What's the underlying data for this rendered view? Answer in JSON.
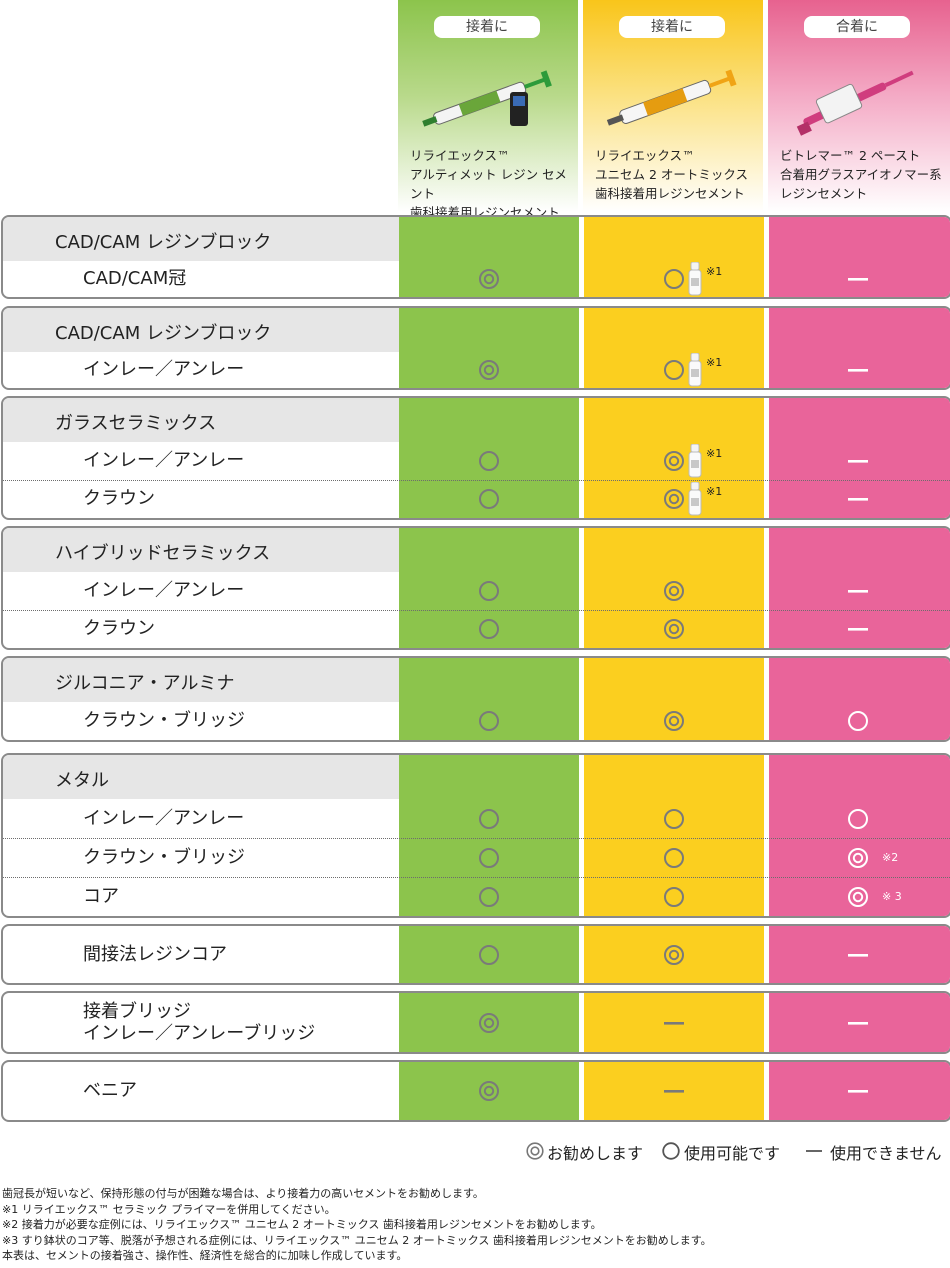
{
  "products": [
    {
      "tag": "接着に",
      "name": "リライエックス™\nアルティメット レジン セメント\n歯科接着用レジンセメント",
      "color": "#8cc44c"
    },
    {
      "tag": "接着に",
      "name": "リライエックス™\nユニセム 2 オートミックス\n歯科接着用レジンセメント",
      "color": "#fbcf1f"
    },
    {
      "tag": "合着に",
      "name": "ビトレマー™ 2 ペースト\n合着用グラスアイオノマー系\nレジンセメント",
      "color": "#e9649a"
    }
  ],
  "groups": [
    {
      "header": "CAD/CAM レジンブロック",
      "rows": [
        {
          "label": "CAD/CAM冠",
          "cells": [
            "double",
            "single+primer",
            "dash"
          ],
          "notes": [
            "",
            "※1",
            ""
          ]
        }
      ]
    },
    {
      "header": "CAD/CAM レジンブロック",
      "rows": [
        {
          "label": "インレー／アンレー",
          "cells": [
            "double",
            "single+primer",
            "dash"
          ],
          "notes": [
            "",
            "※1",
            ""
          ]
        }
      ]
    },
    {
      "header": "ガラスセラミックス",
      "rows": [
        {
          "label": "インレー／アンレー",
          "cells": [
            "single",
            "double+primer",
            "dash"
          ],
          "notes": [
            "",
            "※1",
            ""
          ]
        },
        {
          "label": "クラウン",
          "cells": [
            "single",
            "double+primer",
            "dash"
          ],
          "notes": [
            "",
            "※1",
            ""
          ]
        }
      ]
    },
    {
      "header": "ハイブリッドセラミックス",
      "rows": [
        {
          "label": "インレー／アンレー",
          "cells": [
            "single",
            "double",
            "dash"
          ],
          "notes": [
            "",
            "",
            ""
          ]
        },
        {
          "label": "クラウン",
          "cells": [
            "single",
            "double",
            "dash"
          ],
          "notes": [
            "",
            "",
            ""
          ]
        }
      ]
    },
    {
      "header": "ジルコニア・アルミナ",
      "rows": [
        {
          "label": "クラウン・ブリッジ",
          "cells": [
            "single",
            "double",
            "single"
          ],
          "notes": [
            "",
            "",
            ""
          ]
        }
      ]
    },
    {
      "header": "メタル",
      "rows": [
        {
          "label": "インレー／アンレー",
          "cells": [
            "single",
            "single",
            "single"
          ],
          "notes": [
            "",
            "",
            ""
          ]
        },
        {
          "label": "クラウン・ブリッジ",
          "cells": [
            "single",
            "single",
            "double"
          ],
          "notes": [
            "",
            "",
            "※2"
          ]
        },
        {
          "label": "コア",
          "cells": [
            "single",
            "single",
            "double"
          ],
          "notes": [
            "",
            "",
            "※ 3"
          ]
        }
      ]
    },
    {
      "header": "",
      "rows": [
        {
          "label": "間接法レジンコア",
          "cells": [
            "single",
            "double",
            "dash"
          ],
          "notes": [
            "",
            "",
            ""
          ]
        }
      ]
    },
    {
      "header": "",
      "rows": [
        {
          "label": "接着ブリッジ\nインレー／アンレーブリッジ",
          "cells": [
            "double",
            "dash",
            "dash"
          ],
          "notes": [
            "",
            "",
            ""
          ]
        }
      ]
    },
    {
      "header": "",
      "rows": [
        {
          "label": "ベニア",
          "cells": [
            "double",
            "dash",
            "dash"
          ],
          "notes": [
            "",
            "",
            ""
          ]
        }
      ]
    }
  ],
  "legend": {
    "recommended": "お勧めします",
    "usable": "使用可能です",
    "not_usable": "使用できません"
  },
  "footnotes": [
    "歯冠長が短いなど、保持形態の付与が困難な場合は、より接着力の高いセメントをお勧めします。",
    "※1 リライエックス™ セラミック プライマーを併用してください。",
    "※2 接着力が必要な症例には、リライエックス™ ユニセム 2 オートミックス 歯科接着用レジンセメントをお勧めします。",
    "※3 すり鉢状のコア等、脱落が予想される症例には、リライエックス™ ユニセム 2 オートミックス 歯科接着用レジンセメントをお勧めします。",
    "本表は、セメントの接着強さ、操作性、経済性を総合的に加味し作成しています。"
  ]
}
